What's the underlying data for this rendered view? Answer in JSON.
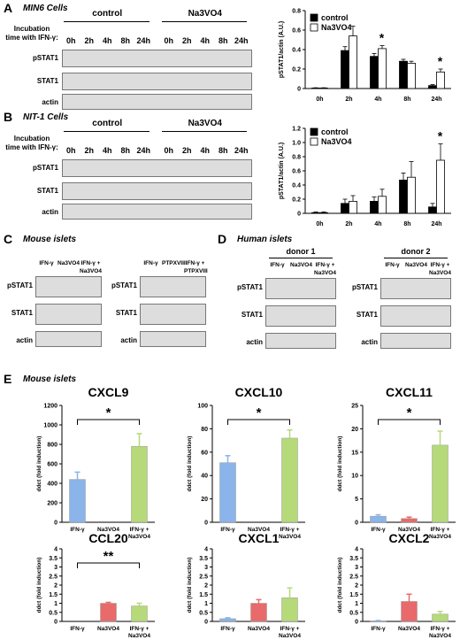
{
  "panels": {
    "A": {
      "letter": "A",
      "title": "MIN6 Cells",
      "incubation": [
        "Incubation",
        "time with IFN-γ:"
      ],
      "groups": [
        "control",
        "Na3VO4"
      ],
      "times": [
        "0h",
        "2h",
        "4h",
        "8h",
        "24h",
        "0h",
        "2h",
        "4h",
        "8h",
        "24h"
      ],
      "rows": [
        "pSTAT1",
        "STAT1",
        "actin"
      ]
    },
    "B": {
      "letter": "B",
      "title": "NIT-1 Cells",
      "incubation": [
        "Incubation",
        "time with IFN-γ:"
      ],
      "groups": [
        "control",
        "Na3VO4"
      ],
      "times": [
        "0h",
        "2h",
        "4h",
        "8h",
        "24h",
        "0h",
        "2h",
        "4h",
        "8h",
        "24h"
      ],
      "rows": [
        "pSTAT1",
        "STAT1",
        "actin"
      ]
    },
    "C": {
      "letter": "C",
      "title": "Mouse islets",
      "left_lanes": [
        "IFN-γ",
        "Na3VO4",
        "IFN-γ +\nNa3VO4"
      ],
      "right_lanes": [
        "IFN-γ",
        "PTPXVIII",
        "IFN-γ +\nPTPXVIII"
      ],
      "rows": [
        "pSTAT1",
        "STAT1",
        "actin"
      ]
    },
    "D": {
      "letter": "D",
      "title": "Human islets",
      "donors": [
        "donor 1",
        "donor 2"
      ],
      "lanes": [
        "IFN-γ",
        "Na3VO4",
        "IFN-γ +\nNa3VO4"
      ],
      "rows": [
        "pSTAT1",
        "STAT1",
        "actin"
      ]
    },
    "E": {
      "letter": "E",
      "title": "Mouse islets"
    }
  },
  "chart_data": [
    {
      "type": "bar",
      "panel": "A",
      "categories": [
        "0h",
        "2h",
        "4h",
        "8h",
        "24h"
      ],
      "series": [
        {
          "name": "control",
          "values": [
            0.005,
            0.39,
            0.33,
            0.28,
            0.03
          ],
          "errors": [
            0.003,
            0.04,
            0.03,
            0.02,
            0.01
          ],
          "color": "#000000"
        },
        {
          "name": "Na3VO4",
          "values": [
            0.005,
            0.54,
            0.41,
            0.26,
            0.17
          ],
          "errors": [
            0.003,
            0.1,
            0.03,
            0.02,
            0.03
          ],
          "color": "#ffffff"
        }
      ],
      "ylabel": "pSTAT1/actin (A.U.)",
      "ylim": [
        0,
        0.8
      ],
      "yticks": [
        "0",
        "0.2",
        "0.4",
        "0.6",
        "0.8"
      ],
      "significance": [
        {
          "category": "4h",
          "label": "*"
        },
        {
          "category": "24h",
          "label": "*"
        }
      ]
    },
    {
      "type": "bar",
      "panel": "B",
      "categories": [
        "0h",
        "2h",
        "4h",
        "8h",
        "24h"
      ],
      "series": [
        {
          "name": "control",
          "values": [
            0.01,
            0.14,
            0.17,
            0.47,
            0.09
          ],
          "errors": [
            0.01,
            0.06,
            0.06,
            0.1,
            0.05
          ],
          "color": "#000000"
        },
        {
          "name": "Na3VO4",
          "values": [
            0.01,
            0.17,
            0.24,
            0.51,
            0.75
          ],
          "errors": [
            0.01,
            0.08,
            0.1,
            0.22,
            0.23
          ],
          "color": "#ffffff"
        }
      ],
      "ylabel": "pSTAT1/actin (A.U.)",
      "ylim": [
        0,
        1.2
      ],
      "yticks": [
        "0",
        "0.2",
        "0.4",
        "0.6",
        "0.8",
        "1.0",
        "1.2"
      ],
      "significance": [
        {
          "category": "24h",
          "label": "*"
        }
      ]
    },
    {
      "type": "bar",
      "panel": "E",
      "title": "CXCL9",
      "categories": [
        "IFN-γ",
        "Na3VO4",
        "IFN-γ +\nNa3VO4"
      ],
      "values": [
        440,
        0,
        780
      ],
      "errors": [
        75,
        0,
        130
      ],
      "colors": [
        "#8ab4ea",
        "#e86a6a",
        "#b6d97a"
      ],
      "ylabel": "ddct (fold induction)",
      "ylim": [
        0,
        1200
      ],
      "yticks": [
        "0",
        "200",
        "400",
        "600",
        "800",
        "1000",
        "1200"
      ],
      "significance": {
        "label": "*",
        "from": 0,
        "to": 2
      }
    },
    {
      "type": "bar",
      "panel": "E",
      "title": "CXCL10",
      "categories": [
        "IFN-γ",
        "Na3VO4",
        "IFN-γ +\nNa3VO4"
      ],
      "values": [
        51,
        0,
        72
      ],
      "errors": [
        6,
        0,
        7
      ],
      "colors": [
        "#8ab4ea",
        "#e86a6a",
        "#b6d97a"
      ],
      "ylabel": "ddct (fold induction)",
      "ylim": [
        0,
        100
      ],
      "yticks": [
        "0",
        "20",
        "40",
        "60",
        "80",
        "100"
      ],
      "significance": {
        "label": "*",
        "from": 0,
        "to": 2
      }
    },
    {
      "type": "bar",
      "panel": "E",
      "title": "CXCL11",
      "categories": [
        "IFN-γ",
        "Na3VO4",
        "IFN-γ +\nNa3VO4"
      ],
      "values": [
        1.3,
        0.8,
        16.5
      ],
      "errors": [
        0.3,
        0.3,
        3
      ],
      "colors": [
        "#8ab4ea",
        "#e86a6a",
        "#b6d97a"
      ],
      "ylabel": "ddct (fold induction)",
      "ylim": [
        0,
        25
      ],
      "yticks": [
        "0",
        "5",
        "10",
        "15",
        "20",
        "25"
      ],
      "significance": {
        "label": "*",
        "from": 0,
        "to": 2
      }
    },
    {
      "type": "bar",
      "panel": "E",
      "title": "CCL20",
      "categories": [
        "IFN-γ",
        "Na3VO4",
        "IFN-γ +\nNa3VO4"
      ],
      "values": [
        0,
        1.0,
        0.85
      ],
      "errors": [
        0,
        0.05,
        0.15
      ],
      "colors": [
        "#8ab4ea",
        "#e86a6a",
        "#b6d97a"
      ],
      "ylabel": "ddct (fold induction)",
      "ylim": [
        0,
        4
      ],
      "yticks": [
        "0",
        "0.5",
        "1",
        "1.5",
        "2",
        "2.5",
        "3",
        "3.5",
        "4"
      ],
      "significance": {
        "label": "**",
        "from": 0,
        "to": 2
      }
    },
    {
      "type": "bar",
      "panel": "E",
      "title": "CXCL1",
      "categories": [
        "IFN-γ",
        "Na3VO4",
        "IFN-γ +\nNa3VO4"
      ],
      "values": [
        0.15,
        1.0,
        1.3
      ],
      "errors": [
        0.05,
        0.2,
        0.55
      ],
      "colors": [
        "#8ab4ea",
        "#e86a6a",
        "#b6d97a"
      ],
      "ylabel": "ddct (fold induction)",
      "ylim": [
        0,
        4
      ],
      "yticks": [
        "0",
        "0.5",
        "1",
        "1.5",
        "2",
        "2.5",
        "3",
        "3.5",
        "4"
      ]
    },
    {
      "type": "bar",
      "panel": "E",
      "title": "CXCL2",
      "categories": [
        "IFN-γ",
        "Na3VO4",
        "IFN-γ +\nNa3VO4"
      ],
      "values": [
        0.03,
        1.1,
        0.4
      ],
      "errors": [
        0.02,
        0.4,
        0.15
      ],
      "colors": [
        "#8ab4ea",
        "#e86a6a",
        "#b6d97a"
      ],
      "ylabel": "ddct (fold induction)",
      "ylim": [
        0,
        4
      ],
      "yticks": [
        "0",
        "0.5",
        "1",
        "1.5",
        "2",
        "2.5",
        "3",
        "3.5",
        "4"
      ]
    }
  ]
}
